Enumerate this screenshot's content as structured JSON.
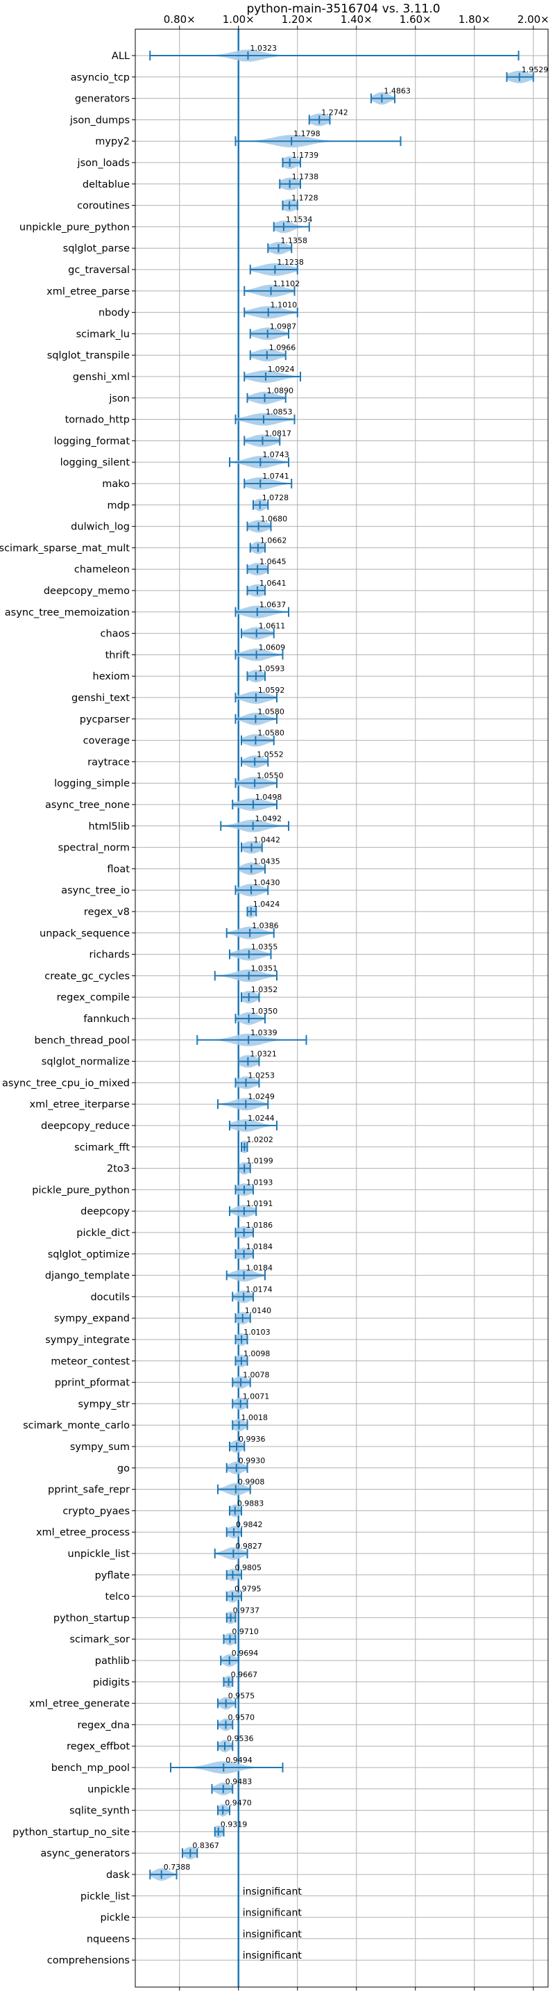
{
  "chart_data": {
    "type": "violin",
    "title": "python-main-3516704 vs. 3.11.0",
    "xlim": [
      0.65,
      2.05
    ],
    "reference_line": 1.0,
    "x_ticks": [
      {
        "value": 0.8,
        "label": "0.80×"
      },
      {
        "value": 1.0,
        "label": "1.00×"
      },
      {
        "value": 1.2,
        "label": "1.20×"
      },
      {
        "value": 1.4,
        "label": "1.40×"
      },
      {
        "value": 1.6,
        "label": "1.60×"
      },
      {
        "value": 1.8,
        "label": "1.80×"
      },
      {
        "value": 2.0,
        "label": "2.00×"
      }
    ],
    "insignificant_text": "insignificant",
    "colors": {
      "violin": "#a6cbe8",
      "line": "#1f77b4",
      "grid": "#b0b0b0"
    },
    "benchmarks": [
      {
        "name": "ALL",
        "value": 1.0323,
        "label": "1.0323",
        "min": 0.7,
        "max": 1.95,
        "spread": 0.05
      },
      {
        "name": "asyncio_tcp",
        "value": 1.9529,
        "label": "1.9529",
        "min": 1.91,
        "max": 2.0,
        "spread": 0.035
      },
      {
        "name": "generators",
        "value": 1.4863,
        "label": "1.4863",
        "min": 1.45,
        "max": 1.53,
        "spread": 0.025
      },
      {
        "name": "json_dumps",
        "value": 1.2742,
        "label": "1.2742",
        "min": 1.24,
        "max": 1.31,
        "spread": 0.03
      },
      {
        "name": "mypy2",
        "value": 1.1798,
        "label": "1.1798",
        "min": 0.99,
        "max": 1.55,
        "spread": 0.06
      },
      {
        "name": "json_loads",
        "value": 1.1739,
        "label": "1.1739",
        "min": 1.15,
        "max": 1.21,
        "spread": 0.025
      },
      {
        "name": "deltablue",
        "value": 1.1738,
        "label": "1.1738",
        "min": 1.14,
        "max": 1.21,
        "spread": 0.03
      },
      {
        "name": "coroutines",
        "value": 1.1728,
        "label": "1.1728",
        "min": 1.15,
        "max": 1.2,
        "spread": 0.025
      },
      {
        "name": "unpickle_pure_python",
        "value": 1.1534,
        "label": "1.1534",
        "min": 1.12,
        "max": 1.24,
        "spread": 0.03
      },
      {
        "name": "sqlglot_parse",
        "value": 1.1358,
        "label": "1.1358",
        "min": 1.1,
        "max": 1.18,
        "spread": 0.03
      },
      {
        "name": "gc_traversal",
        "value": 1.1238,
        "label": "1.1238",
        "min": 1.04,
        "max": 1.2,
        "spread": 0.05
      },
      {
        "name": "xml_etree_parse",
        "value": 1.1102,
        "label": "1.1102",
        "min": 1.02,
        "max": 1.19,
        "spread": 0.045
      },
      {
        "name": "nbody",
        "value": 1.101,
        "label": "1.1010",
        "min": 1.02,
        "max": 1.2,
        "spread": 0.05
      },
      {
        "name": "scimark_lu",
        "value": 1.0987,
        "label": "1.0987",
        "min": 1.04,
        "max": 1.17,
        "spread": 0.04
      },
      {
        "name": "sqlglot_transpile",
        "value": 1.0966,
        "label": "1.0966",
        "min": 1.04,
        "max": 1.16,
        "spread": 0.04
      },
      {
        "name": "genshi_xml",
        "value": 1.0924,
        "label": "1.0924",
        "min": 1.02,
        "max": 1.21,
        "spread": 0.05
      },
      {
        "name": "json",
        "value": 1.089,
        "label": "1.0890",
        "min": 1.03,
        "max": 1.16,
        "spread": 0.04
      },
      {
        "name": "tornado_http",
        "value": 1.0853,
        "label": "1.0853",
        "min": 0.99,
        "max": 1.19,
        "spread": 0.05
      },
      {
        "name": "logging_format",
        "value": 1.0817,
        "label": "1.0817",
        "min": 1.02,
        "max": 1.14,
        "spread": 0.04
      },
      {
        "name": "logging_silent",
        "value": 1.0743,
        "label": "1.0743",
        "min": 0.97,
        "max": 1.17,
        "spread": 0.045
      },
      {
        "name": "mako",
        "value": 1.0741,
        "label": "1.0741",
        "min": 1.02,
        "max": 1.18,
        "spread": 0.045
      },
      {
        "name": "mdp",
        "value": 1.0728,
        "label": "1.0728",
        "min": 1.05,
        "max": 1.1,
        "spread": 0.02
      },
      {
        "name": "dulwich_log",
        "value": 1.068,
        "label": "1.0680",
        "min": 1.03,
        "max": 1.11,
        "spread": 0.03
      },
      {
        "name": "scimark_sparse_mat_mult",
        "value": 1.0662,
        "label": "1.0662",
        "min": 1.04,
        "max": 1.09,
        "spread": 0.02
      },
      {
        "name": "chameleon",
        "value": 1.0645,
        "label": "1.0645",
        "min": 1.03,
        "max": 1.1,
        "spread": 0.03
      },
      {
        "name": "deepcopy_memo",
        "value": 1.0641,
        "label": "1.0641",
        "min": 1.03,
        "max": 1.09,
        "spread": 0.03
      },
      {
        "name": "async_tree_memoization",
        "value": 1.0637,
        "label": "1.0637",
        "min": 0.99,
        "max": 1.17,
        "spread": 0.045
      },
      {
        "name": "chaos",
        "value": 1.0611,
        "label": "1.0611",
        "min": 1.01,
        "max": 1.12,
        "spread": 0.035
      },
      {
        "name": "thrift",
        "value": 1.0609,
        "label": "1.0609",
        "min": 0.99,
        "max": 1.15,
        "spread": 0.04
      },
      {
        "name": "hexiom",
        "value": 1.0593,
        "label": "1.0593",
        "min": 1.03,
        "max": 1.09,
        "spread": 0.025
      },
      {
        "name": "genshi_text",
        "value": 1.0592,
        "label": "1.0592",
        "min": 0.99,
        "max": 1.13,
        "spread": 0.04
      },
      {
        "name": "pycparser",
        "value": 1.058,
        "label": "1.0580",
        "min": 0.99,
        "max": 1.13,
        "spread": 0.035
      },
      {
        "name": "coverage",
        "value": 1.058,
        "label": "1.0580",
        "min": 1.01,
        "max": 1.12,
        "spread": 0.035
      },
      {
        "name": "raytrace",
        "value": 1.0552,
        "label": "1.0552",
        "min": 1.01,
        "max": 1.1,
        "spread": 0.03
      },
      {
        "name": "logging_simple",
        "value": 1.055,
        "label": "1.0550",
        "min": 0.99,
        "max": 1.13,
        "spread": 0.04
      },
      {
        "name": "async_tree_none",
        "value": 1.0498,
        "label": "1.0498",
        "min": 0.98,
        "max": 1.13,
        "spread": 0.045
      },
      {
        "name": "html5lib",
        "value": 1.0492,
        "label": "1.0492",
        "min": 0.94,
        "max": 1.17,
        "spread": 0.045
      },
      {
        "name": "spectral_norm",
        "value": 1.0442,
        "label": "1.0442",
        "min": 1.01,
        "max": 1.08,
        "spread": 0.03
      },
      {
        "name": "float",
        "value": 1.0435,
        "label": "1.0435",
        "min": 1.0,
        "max": 1.09,
        "spread": 0.03
      },
      {
        "name": "async_tree_io",
        "value": 1.043,
        "label": "1.0430",
        "min": 0.99,
        "max": 1.1,
        "spread": 0.035
      },
      {
        "name": "regex_v8",
        "value": 1.0424,
        "label": "1.0424",
        "min": 1.03,
        "max": 1.06,
        "spread": 0.015
      },
      {
        "name": "unpack_sequence",
        "value": 1.0386,
        "label": "1.0386",
        "min": 0.96,
        "max": 1.12,
        "spread": 0.04
      },
      {
        "name": "richards",
        "value": 1.0355,
        "label": "1.0355",
        "min": 0.97,
        "max": 1.11,
        "spread": 0.04
      },
      {
        "name": "create_gc_cycles",
        "value": 1.0351,
        "label": "1.0351",
        "min": 0.92,
        "max": 1.13,
        "spread": 0.045
      },
      {
        "name": "regex_compile",
        "value": 1.0352,
        "label": "1.0352",
        "min": 1.01,
        "max": 1.07,
        "spread": 0.025
      },
      {
        "name": "fannkuch",
        "value": 1.035,
        "label": "1.0350",
        "min": 0.99,
        "max": 1.09,
        "spread": 0.03
      },
      {
        "name": "bench_thread_pool",
        "value": 1.0339,
        "label": "1.0339",
        "min": 0.86,
        "max": 1.23,
        "spread": 0.05
      },
      {
        "name": "sqlglot_normalize",
        "value": 1.0321,
        "label": "1.0321",
        "min": 1.0,
        "max": 1.07,
        "spread": 0.03
      },
      {
        "name": "async_tree_cpu_io_mixed",
        "value": 1.0253,
        "label": "1.0253",
        "min": 0.99,
        "max": 1.07,
        "spread": 0.03
      },
      {
        "name": "xml_etree_iterparse",
        "value": 1.0249,
        "label": "1.0249",
        "min": 0.93,
        "max": 1.1,
        "spread": 0.04
      },
      {
        "name": "deepcopy_reduce",
        "value": 1.0244,
        "label": "1.0244",
        "min": 0.97,
        "max": 1.13,
        "spread": 0.04
      },
      {
        "name": "scimark_fft",
        "value": 1.0202,
        "label": "1.0202",
        "min": 1.01,
        "max": 1.03,
        "spread": 0.012
      },
      {
        "name": "2to3",
        "value": 1.0199,
        "label": "1.0199",
        "min": 1.0,
        "max": 1.04,
        "spread": 0.018
      },
      {
        "name": "pickle_pure_python",
        "value": 1.0193,
        "label": "1.0193",
        "min": 0.99,
        "max": 1.05,
        "spread": 0.025
      },
      {
        "name": "deepcopy",
        "value": 1.0191,
        "label": "1.0191",
        "min": 0.97,
        "max": 1.06,
        "spread": 0.03
      },
      {
        "name": "pickle_dict",
        "value": 1.0186,
        "label": "1.0186",
        "min": 0.99,
        "max": 1.05,
        "spread": 0.025
      },
      {
        "name": "sqlglot_optimize",
        "value": 1.0184,
        "label": "1.0184",
        "min": 0.99,
        "max": 1.05,
        "spread": 0.025
      },
      {
        "name": "django_template",
        "value": 1.0184,
        "label": "1.0184",
        "min": 0.96,
        "max": 1.09,
        "spread": 0.035
      },
      {
        "name": "docutils",
        "value": 1.0174,
        "label": "1.0174",
        "min": 0.98,
        "max": 1.05,
        "spread": 0.025
      },
      {
        "name": "sympy_expand",
        "value": 1.014,
        "label": "1.0140",
        "min": 0.99,
        "max": 1.04,
        "spread": 0.02
      },
      {
        "name": "sympy_integrate",
        "value": 1.0103,
        "label": "1.0103",
        "min": 0.99,
        "max": 1.03,
        "spread": 0.018
      },
      {
        "name": "meteor_contest",
        "value": 1.0098,
        "label": "1.0098",
        "min": 0.99,
        "max": 1.03,
        "spread": 0.018
      },
      {
        "name": "pprint_pformat",
        "value": 1.0078,
        "label": "1.0078",
        "min": 0.98,
        "max": 1.04,
        "spread": 0.022
      },
      {
        "name": "sympy_str",
        "value": 1.0071,
        "label": "1.0071",
        "min": 0.98,
        "max": 1.03,
        "spread": 0.02
      },
      {
        "name": "scimark_monte_carlo",
        "value": 1.0018,
        "label": "1.0018",
        "min": 0.98,
        "max": 1.03,
        "spread": 0.02
      },
      {
        "name": "sympy_sum",
        "value": 0.9936,
        "label": "0.9936",
        "min": 0.97,
        "max": 1.02,
        "spread": 0.02
      },
      {
        "name": "go",
        "value": 0.993,
        "label": "0.9930",
        "min": 0.96,
        "max": 1.03,
        "spread": 0.025
      },
      {
        "name": "pprint_safe_repr",
        "value": 0.9908,
        "label": "0.9908",
        "min": 0.93,
        "max": 1.04,
        "spread": 0.03
      },
      {
        "name": "crypto_pyaes",
        "value": 0.9883,
        "label": "0.9883",
        "min": 0.97,
        "max": 1.01,
        "spread": 0.018
      },
      {
        "name": "xml_etree_process",
        "value": 0.9842,
        "label": "0.9842",
        "min": 0.96,
        "max": 1.01,
        "spread": 0.02
      },
      {
        "name": "unpickle_list",
        "value": 0.9827,
        "label": "0.9827",
        "min": 0.92,
        "max": 1.03,
        "spread": 0.03
      },
      {
        "name": "pyflate",
        "value": 0.9805,
        "label": "0.9805",
        "min": 0.96,
        "max": 1.01,
        "spread": 0.02
      },
      {
        "name": "telco",
        "value": 0.9795,
        "label": "0.9795",
        "min": 0.96,
        "max": 1.01,
        "spread": 0.02
      },
      {
        "name": "python_startup",
        "value": 0.9737,
        "label": "0.9737",
        "min": 0.96,
        "max": 0.99,
        "spread": 0.015
      },
      {
        "name": "scimark_sor",
        "value": 0.971,
        "label": "0.9710",
        "min": 0.95,
        "max": 0.99,
        "spread": 0.018
      },
      {
        "name": "pathlib",
        "value": 0.9694,
        "label": "0.9694",
        "min": 0.94,
        "max": 1.0,
        "spread": 0.02
      },
      {
        "name": "pidigits",
        "value": 0.9667,
        "label": "0.9667",
        "min": 0.95,
        "max": 0.98,
        "spread": 0.015
      },
      {
        "name": "xml_etree_generate",
        "value": 0.9575,
        "label": "0.9575",
        "min": 0.93,
        "max": 0.99,
        "spread": 0.02
      },
      {
        "name": "regex_dna",
        "value": 0.957,
        "label": "0.9570",
        "min": 0.93,
        "max": 0.98,
        "spread": 0.018
      },
      {
        "name": "regex_effbot",
        "value": 0.9536,
        "label": "0.9536",
        "min": 0.93,
        "max": 0.98,
        "spread": 0.018
      },
      {
        "name": "bench_mp_pool",
        "value": 0.9494,
        "label": "0.9494",
        "min": 0.77,
        "max": 1.15,
        "spread": 0.05
      },
      {
        "name": "unpickle",
        "value": 0.9483,
        "label": "0.9483",
        "min": 0.91,
        "max": 0.98,
        "spread": 0.025
      },
      {
        "name": "sqlite_synth",
        "value": 0.947,
        "label": "0.9470",
        "min": 0.93,
        "max": 0.97,
        "spread": 0.015
      },
      {
        "name": "python_startup_no_site",
        "value": 0.9319,
        "label": "0.9319",
        "min": 0.92,
        "max": 0.95,
        "spread": 0.015
      },
      {
        "name": "async_generators",
        "value": 0.8367,
        "label": "0.8367",
        "min": 0.81,
        "max": 0.86,
        "spread": 0.02
      },
      {
        "name": "dask",
        "value": 0.7388,
        "label": "0.7388",
        "min": 0.7,
        "max": 0.79,
        "spread": 0.025
      },
      {
        "name": "pickle_list",
        "insignificant": true
      },
      {
        "name": "pickle",
        "insignificant": true
      },
      {
        "name": "nqueens",
        "insignificant": true
      },
      {
        "name": "comprehensions",
        "insignificant": true
      }
    ]
  }
}
